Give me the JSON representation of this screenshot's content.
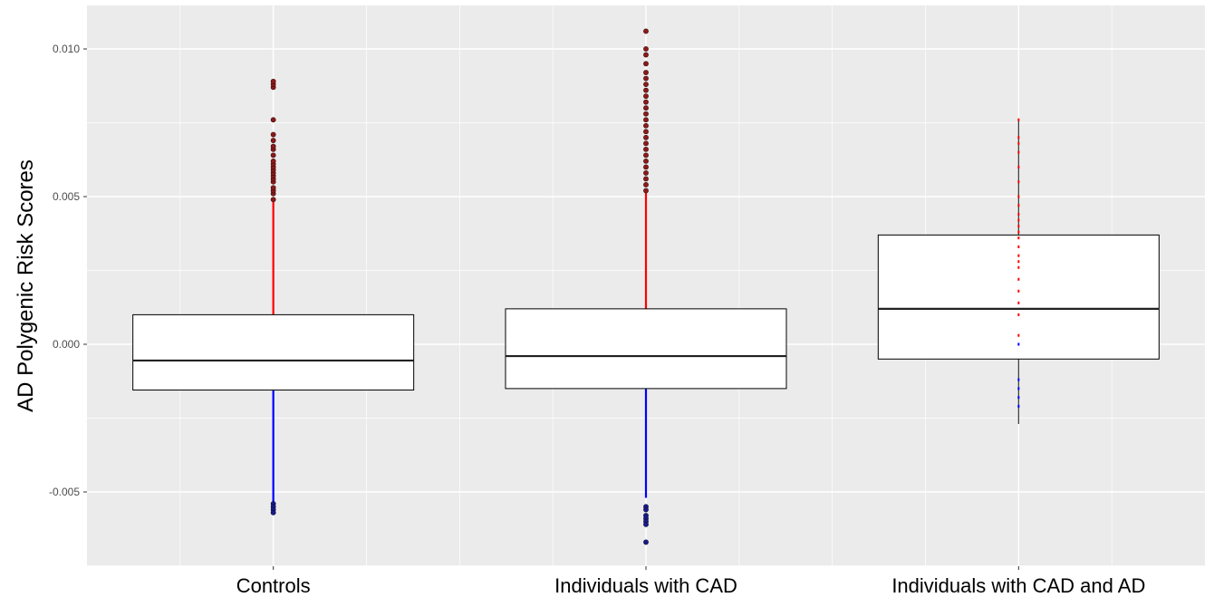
{
  "chart_data": {
    "type": "boxplot",
    "title": "",
    "xlabel": "",
    "ylabel": "AD Polygenic Risk Scores",
    "ylim": [
      -0.0075,
      0.0115
    ],
    "y_ticks": [
      -0.005,
      0.0,
      0.005,
      0.01
    ],
    "y_tick_labels": [
      "-0.005",
      "0.000",
      "0.005",
      "0.010"
    ],
    "grid": true,
    "legend": "none",
    "colors": {
      "panel": "#ebebeb",
      "grid": "#ffffff",
      "box_fill": "#ffffff",
      "box_line": "#000000",
      "high_points": "#ff0000",
      "low_points": "#0000ff",
      "outlier_high": "#8b1a1a",
      "outlier_low": "#1a1a8b"
    },
    "categories": [
      "Controls",
      "Individuals with CAD",
      "Individuals with CAD and AD"
    ],
    "boxes": [
      {
        "q1": -0.00155,
        "median": -0.00055,
        "q3": 0.001,
        "red_range": [
          0.0,
          0.0049
        ],
        "blue_range": [
          -0.0054,
          0.0
        ],
        "outliers_high": [
          0.0049,
          0.0051,
          0.0052,
          0.0053,
          0.0055,
          0.0056,
          0.0057,
          0.0058,
          0.0059,
          0.006,
          0.0061,
          0.0062,
          0.0064,
          0.0066,
          0.0067,
          0.0069,
          0.0071,
          0.0076,
          0.0087,
          0.0088,
          0.0089
        ],
        "outliers_low": [
          -0.0054,
          -0.0055,
          -0.0056,
          -0.0057
        ]
      },
      {
        "q1": -0.0015,
        "median": -0.0004,
        "q3": 0.0012,
        "red_range": [
          0.0,
          0.0052
        ],
        "blue_range": [
          -0.0052,
          0.0
        ],
        "outliers_high": [
          0.0052,
          0.0054,
          0.0056,
          0.0058,
          0.006,
          0.0062,
          0.0064,
          0.0066,
          0.0068,
          0.007,
          0.0072,
          0.0074,
          0.0076,
          0.0078,
          0.008,
          0.0082,
          0.0084,
          0.0086,
          0.0088,
          0.009,
          0.0092,
          0.0095,
          0.0098,
          0.01,
          0.0106
        ],
        "outliers_low": [
          -0.0055,
          -0.0056,
          -0.0058,
          -0.0059,
          -0.006,
          -0.0061,
          -0.0067
        ]
      },
      {
        "q1": -0.0005,
        "median": 0.0012,
        "q3": 0.0037,
        "whisker_low": -0.0027,
        "whisker_high": 0.0076,
        "red_points": [
          0.0076,
          0.007,
          0.0068,
          0.0065,
          0.006,
          0.0055,
          0.005,
          0.0047,
          0.0044,
          0.0042,
          0.004,
          0.0038,
          0.0036,
          0.0033,
          0.003,
          0.0028,
          0.0026,
          0.0022,
          0.0018,
          0.0014,
          0.001,
          0.0003
        ],
        "blue_points": [
          0.0,
          -0.0012,
          -0.0015,
          -0.0018,
          -0.0021
        ],
        "outliers_high": [],
        "outliers_low": []
      }
    ]
  }
}
